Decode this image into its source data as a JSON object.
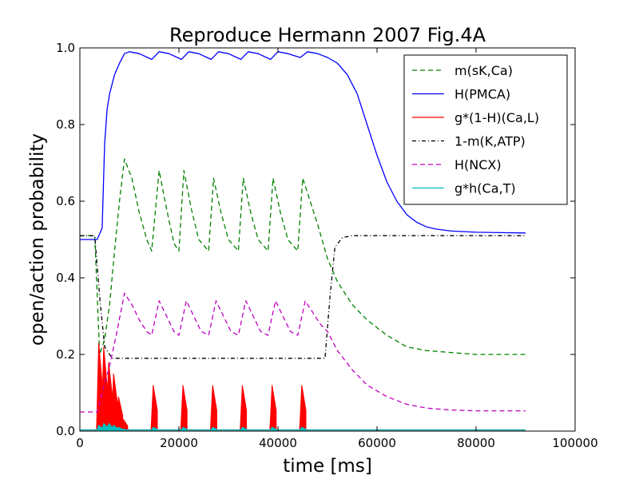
{
  "chart_data": {
    "type": "line",
    "title": "Reproduce Hermann 2007 Fig.4A",
    "xlabel": "time [ms]",
    "ylabel": "open/action probability",
    "xlim": [
      0,
      100000
    ],
    "ylim": [
      0.0,
      1.0
    ],
    "x_ticks": [
      0,
      20000,
      40000,
      60000,
      80000,
      100000
    ],
    "x_tick_labels": [
      "0",
      "20000",
      "40000",
      "60000",
      "80000",
      "100000"
    ],
    "y_ticks": [
      0.0,
      0.2,
      0.4,
      0.6,
      0.8,
      1.0
    ],
    "y_tick_labels": [
      "0.0",
      "0.2",
      "0.4",
      "0.6",
      "0.8",
      "1.0"
    ],
    "grid": false,
    "legend_position": "top-right",
    "series": [
      {
        "name": "m(sK,Ca)",
        "color": "#008000",
        "style": "dashed",
        "x": [
          0,
          3000,
          4000,
          5000,
          6000,
          7000,
          8000,
          9000,
          10500,
          12000,
          13500,
          14500,
          16000,
          17500,
          19000,
          20000,
          21000,
          22500,
          24000,
          26000,
          27000,
          28500,
          30000,
          32000,
          33000,
          34500,
          36000,
          38000,
          39000,
          40500,
          42000,
          44000,
          45000,
          46500,
          48000,
          50000,
          52000,
          55000,
          58000,
          62000,
          66000,
          70000,
          75000,
          80000,
          85000,
          90000
        ],
        "y": [
          0.51,
          0.51,
          0.2,
          0.24,
          0.33,
          0.47,
          0.6,
          0.71,
          0.66,
          0.57,
          0.5,
          0.47,
          0.68,
          0.58,
          0.49,
          0.47,
          0.68,
          0.58,
          0.5,
          0.47,
          0.66,
          0.57,
          0.5,
          0.47,
          0.66,
          0.57,
          0.5,
          0.47,
          0.66,
          0.57,
          0.5,
          0.47,
          0.66,
          0.6,
          0.54,
          0.45,
          0.39,
          0.33,
          0.29,
          0.25,
          0.22,
          0.21,
          0.205,
          0.2,
          0.2,
          0.2
        ]
      },
      {
        "name": "H(PMCA)",
        "color": "#0000ff",
        "style": "solid",
        "x": [
          0,
          3500,
          4500,
          5000,
          5500,
          6000,
          7000,
          8000,
          9000,
          10000,
          12000,
          14500,
          16000,
          18000,
          20500,
          22000,
          24000,
          26500,
          28000,
          30000,
          32500,
          34000,
          36000,
          38500,
          40000,
          42000,
          44500,
          46000,
          48000,
          50000,
          52000,
          54000,
          56000,
          58000,
          60000,
          62000,
          64000,
          66000,
          68000,
          70000,
          72000,
          75000,
          80000,
          85000,
          90000
        ],
        "y": [
          0.5,
          0.5,
          0.53,
          0.75,
          0.84,
          0.88,
          0.93,
          0.96,
          0.985,
          0.99,
          0.985,
          0.97,
          0.99,
          0.985,
          0.97,
          0.99,
          0.985,
          0.97,
          0.99,
          0.985,
          0.97,
          0.99,
          0.985,
          0.97,
          0.99,
          0.985,
          0.975,
          0.99,
          0.985,
          0.975,
          0.96,
          0.93,
          0.88,
          0.8,
          0.72,
          0.65,
          0.6,
          0.565,
          0.545,
          0.533,
          0.527,
          0.522,
          0.519,
          0.518,
          0.517
        ]
      },
      {
        "name": "g*(1-H)(Ca,L)",
        "color": "#ff0000",
        "style": "spikes",
        "x": [
          4000,
          5000,
          6000,
          7000,
          8000,
          9000,
          15000,
          21000,
          27000,
          33000,
          39000,
          45000
        ],
        "y": [
          0.23,
          0.22,
          0.18,
          0.15,
          0.09,
          0.03,
          0.12,
          0.12,
          0.12,
          0.12,
          0.12,
          0.12
        ]
      },
      {
        "name": "1-m(K,ATP)",
        "color": "#000000",
        "style": "dashdot",
        "x": [
          0,
          3000,
          4000,
          5000,
          6500,
          9000,
          20000,
          30000,
          40000,
          49500,
          50500,
          51500,
          53000,
          55000,
          60000,
          70000,
          80000,
          90000
        ],
        "y": [
          0.51,
          0.51,
          0.35,
          0.22,
          0.19,
          0.19,
          0.19,
          0.19,
          0.19,
          0.19,
          0.35,
          0.48,
          0.505,
          0.51,
          0.51,
          0.51,
          0.51,
          0.51
        ]
      },
      {
        "name": "H(NCX)",
        "color": "#bf00bf",
        "style": "dashed",
        "x": [
          0,
          3500,
          4500,
          6000,
          7500,
          9000,
          10500,
          12000,
          13500,
          14500,
          16000,
          17500,
          19000,
          20000,
          21500,
          23000,
          24500,
          26000,
          27500,
          29000,
          30500,
          32000,
          33500,
          35000,
          36500,
          38000,
          39500,
          41000,
          42500,
          44000,
          45500,
          47000,
          48500,
          50000,
          52000,
          55000,
          58000,
          62000,
          66000,
          70000,
          75000,
          80000,
          85000,
          90000
        ],
        "y": [
          0.05,
          0.05,
          0.1,
          0.17,
          0.26,
          0.36,
          0.33,
          0.29,
          0.26,
          0.25,
          0.34,
          0.3,
          0.26,
          0.25,
          0.34,
          0.3,
          0.26,
          0.25,
          0.34,
          0.3,
          0.26,
          0.25,
          0.34,
          0.3,
          0.26,
          0.25,
          0.34,
          0.3,
          0.26,
          0.25,
          0.34,
          0.31,
          0.28,
          0.26,
          0.21,
          0.16,
          0.12,
          0.09,
          0.07,
          0.06,
          0.055,
          0.053,
          0.053,
          0.053
        ]
      },
      {
        "name": "g*h(Ca,T)",
        "color": "#00bfbf",
        "style": "spikes",
        "x": [
          4000,
          5000,
          6000,
          7000,
          8000,
          9000,
          15000,
          21000,
          27000,
          33000,
          39000,
          45000
        ],
        "y": [
          0.015,
          0.02,
          0.02,
          0.015,
          0.01,
          0.005,
          0.01,
          0.01,
          0.01,
          0.01,
          0.01,
          0.01
        ]
      }
    ]
  }
}
